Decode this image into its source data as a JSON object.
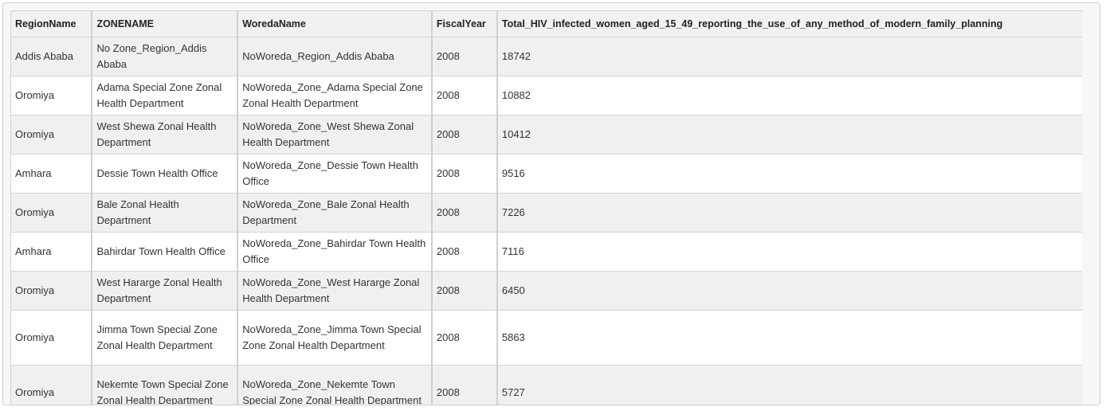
{
  "table": {
    "columns": [
      "RegionName",
      "ZONENAME",
      "WoredaName",
      "FiscalYear",
      "Total_HIV_infected_women_aged_15_49_reporting_the_use_of_any_method_of_modern_family_planning"
    ],
    "rows": [
      [
        "Addis Ababa",
        "No Zone_Region_Addis Ababa",
        "NoWoreda_Region_Addis Ababa",
        "2008",
        "18742"
      ],
      [
        "Oromiya",
        "Adama Special Zone Zonal Health Department",
        "NoWoreda_Zone_Adama Special Zone Zonal Health Department",
        "2008",
        "10882"
      ],
      [
        "Oromiya",
        "West Shewa Zonal Health Department",
        "NoWoreda_Zone_West Shewa Zonal Health Department",
        "2008",
        "10412"
      ],
      [
        "Amhara",
        "Dessie Town Health Office",
        "NoWoreda_Zone_Dessie Town Health Office",
        "2008",
        "9516"
      ],
      [
        "Oromiya",
        "Bale Zonal Health Department",
        "NoWoreda_Zone_Bale Zonal Health Department",
        "2008",
        "7226"
      ],
      [
        "Amhara",
        "Bahirdar Town Health Office",
        "NoWoreda_Zone_Bahirdar Town Health Office",
        "2008",
        "7116"
      ],
      [
        "Oromiya",
        "West Hararge Zonal Health Department",
        "NoWoreda_Zone_West Hararge Zonal Health Department",
        "2008",
        "6450"
      ],
      [
        "Oromiya",
        "Jimma Town Special Zone Zonal Health Department",
        "NoWoreda_Zone_Jimma Town Special Zone Zonal Health Department",
        "2008",
        "5863"
      ],
      [
        "Oromiya",
        "Nekemte Town Special Zone Zonal Health Department",
        "NoWoreda_Zone_Nekemte Town Special Zone Zonal Health Department",
        "2008",
        "5727"
      ]
    ]
  }
}
